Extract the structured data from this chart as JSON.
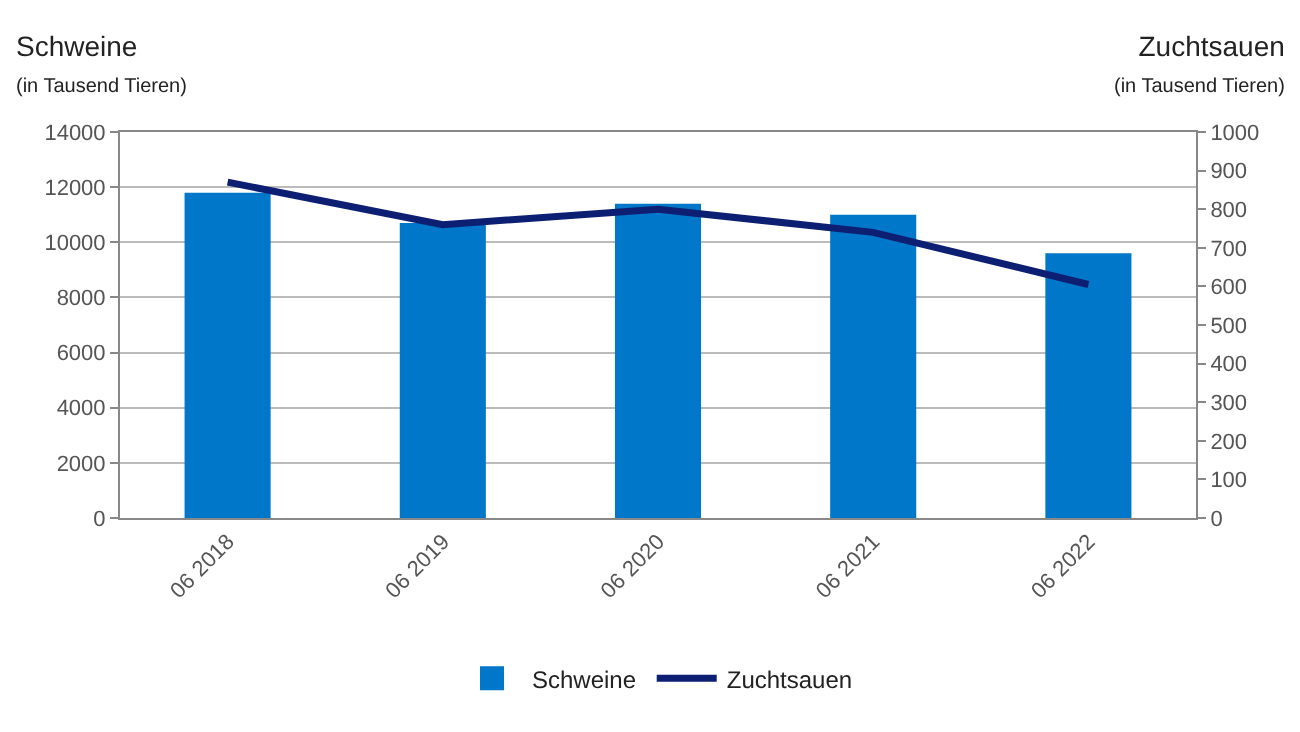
{
  "chart_data": {
    "type": "bar",
    "ylabel": "Schweine\n(in Tausend Tieren)",
    "y2label": "Zuchtsauen\n(in Tausend Tieren)",
    "categories": [
      "06 2018",
      "06 2019",
      "06 2020",
      "06 2021",
      "06 2022"
    ],
    "series": [
      {
        "name": "Schweine",
        "color": "#0077c8",
        "values": [
          11800,
          10700,
          11400,
          11000,
          9600
        ]
      },
      {
        "name": "Zuchtsauen",
        "type": "line",
        "axis": "y2",
        "color": "#0d1f73",
        "marker": "none",
        "line_style": "solid",
        "values": [
          870,
          760,
          800,
          740,
          605
        ]
      }
    ],
    "ylim": [
      0,
      14000
    ],
    "yticks": [
      0,
      2000,
      4000,
      6000,
      8000,
      10000,
      12000,
      14000
    ],
    "y2lim": [
      0,
      1000
    ],
    "y2ticks": [
      0,
      100,
      200,
      300,
      400,
      500,
      600,
      700,
      800,
      900,
      1000
    ],
    "grid": "y",
    "legend": "bottom"
  }
}
